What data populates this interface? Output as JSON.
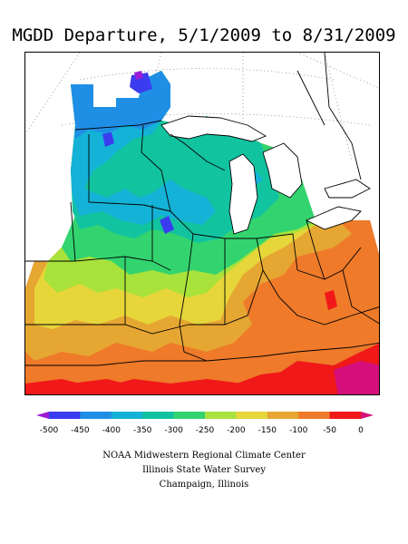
{
  "title": "MGDD Departure, 5/1/2009 to 8/31/2009",
  "legend": {
    "ticks": [
      "-500",
      "-450",
      "-400",
      "-350",
      "-300",
      "-250",
      "-200",
      "-150",
      "-100",
      "-50",
      "0"
    ],
    "colors": [
      "#9c1ad6",
      "#3b3bf0",
      "#1f8fe6",
      "#14b2d6",
      "#12c3a0",
      "#33d470",
      "#a8e23b",
      "#e6d63a",
      "#e6a632",
      "#ee7a2a",
      "#f01818",
      "#d40e7a"
    ]
  },
  "footer": {
    "line1": "NOAA Midwestern Regional Climate Center",
    "line2": "Illinois State Water Survey",
    "line3": "Champaign, Illinois"
  },
  "colors": {
    "deep_blue": "#3b3bf0",
    "blue": "#1f8fe6",
    "cyan": "#14b2d6",
    "teal": "#12c3a0",
    "green": "#33d470",
    "lime": "#a8e23b",
    "yellow": "#e6d63a",
    "gold": "#e6a632",
    "orange": "#ee7a2a",
    "red": "#f01818",
    "magenta": "#d40e7a"
  }
}
